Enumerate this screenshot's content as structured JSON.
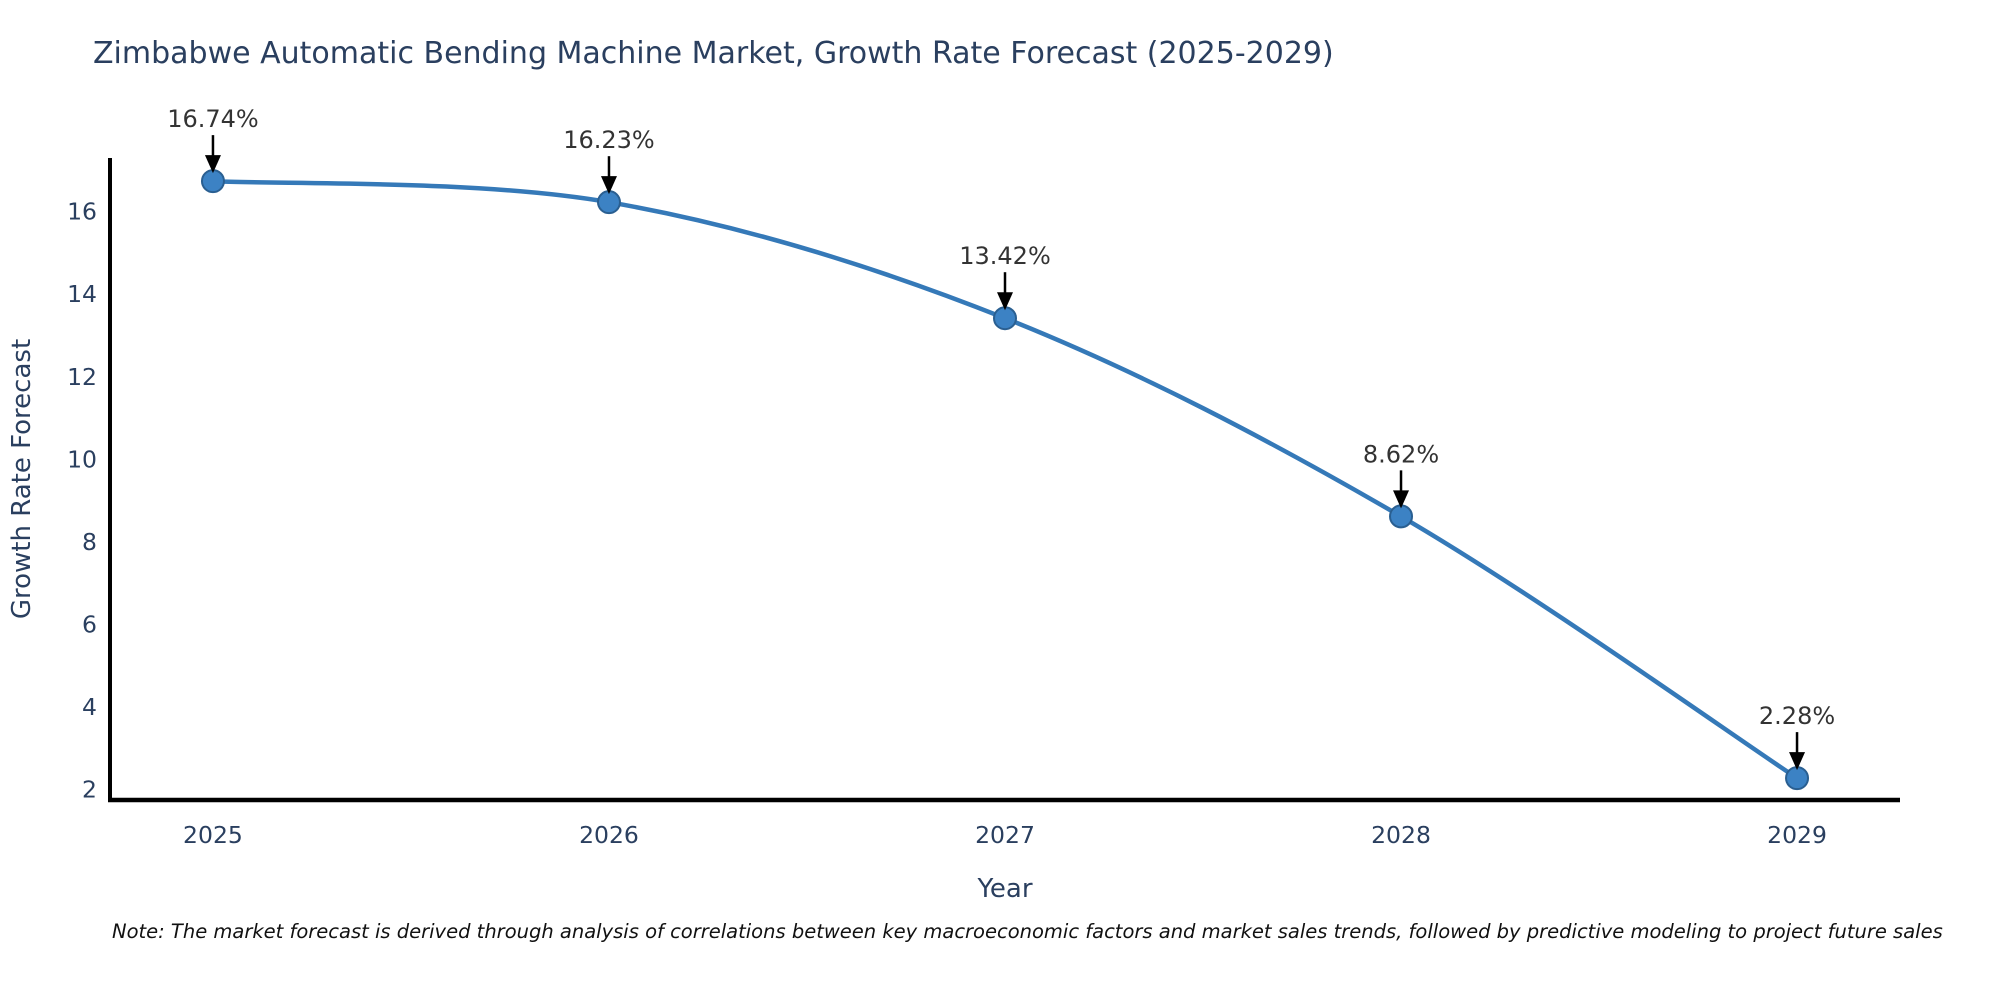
{
  "title": "Zimbabwe Automatic Bending Machine Market, Growth Rate Forecast (2025-2029)",
  "note": "Note: The market forecast is derived through analysis of correlations between key macroeconomic factors and market sales trends, followed by predictive modeling to project future sales",
  "chart_data": {
    "type": "line",
    "title": "Zimbabwe Automatic Bending Machine Market, Growth Rate Forecast (2025-2029)",
    "xlabel": "Year",
    "ylabel": "Growth Rate Forecast",
    "x": [
      2025,
      2026,
      2027,
      2028,
      2029
    ],
    "values": [
      16.74,
      16.23,
      13.42,
      8.62,
      2.28
    ],
    "point_labels": [
      "16.74%",
      "16.23%",
      "13.42%",
      "8.62%",
      "2.28%"
    ],
    "yticks": [
      2,
      4,
      6,
      8,
      10,
      12,
      14,
      16
    ],
    "xticks": [
      "2025",
      "2026",
      "2027",
      "2028",
      "2029"
    ],
    "xlim": [
      2024.74,
      2029.26
    ],
    "ylim": [
      1.75,
      17.3
    ],
    "grid": false,
    "legend": "none",
    "annotation_style": "value labels above points with downward black arrows",
    "colors": {
      "line": "#3579b8",
      "marker": "#3c82c4",
      "marker_edge": "#2a5f91",
      "axis": "#000000",
      "arrow": "#000000",
      "text": "#2a3f5f",
      "annotation_text": "#333333",
      "note_text": "#111111",
      "background": "#ffffff"
    }
  }
}
